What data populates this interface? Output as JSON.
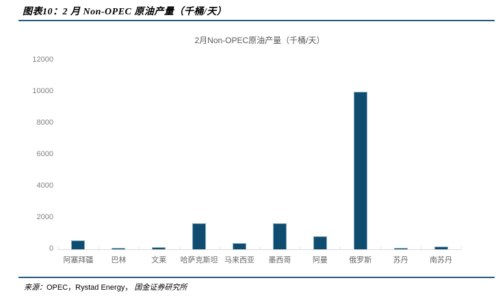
{
  "page": {
    "figure_label": "图表10：2 月 Non-OPEC 原油产量（千桶/天）",
    "footer": {
      "label": "来源：",
      "sources": "OPEC，Rystad Energy，",
      "org": "国金证券研究所"
    }
  },
  "chart_data": {
    "type": "bar",
    "title": "2月Non-OPEC原油产量（千桶/天）",
    "categories": [
      "阿塞拜疆",
      "巴林",
      "文莱",
      "哈萨克斯坦",
      "马来西亚",
      "墨西哥",
      "阿曼",
      "俄罗斯",
      "苏丹",
      "南苏丹"
    ],
    "values": [
      550,
      90,
      130,
      1650,
      400,
      1650,
      830,
      10000,
      100,
      170
    ],
    "unit": "千桶/天",
    "xlabel": "",
    "ylabel": "",
    "ylim": [
      0,
      12000
    ],
    "yticks": [
      0,
      2000,
      4000,
      6000,
      8000,
      10000,
      12000
    ],
    "grid": false,
    "legend": "none",
    "colors": {
      "bar": "#0f4c70",
      "bar_border": "#87abc0",
      "axis": "#d9d9d9",
      "tick_label": "#808080",
      "title": "#595959",
      "rule": "#20597a"
    }
  }
}
